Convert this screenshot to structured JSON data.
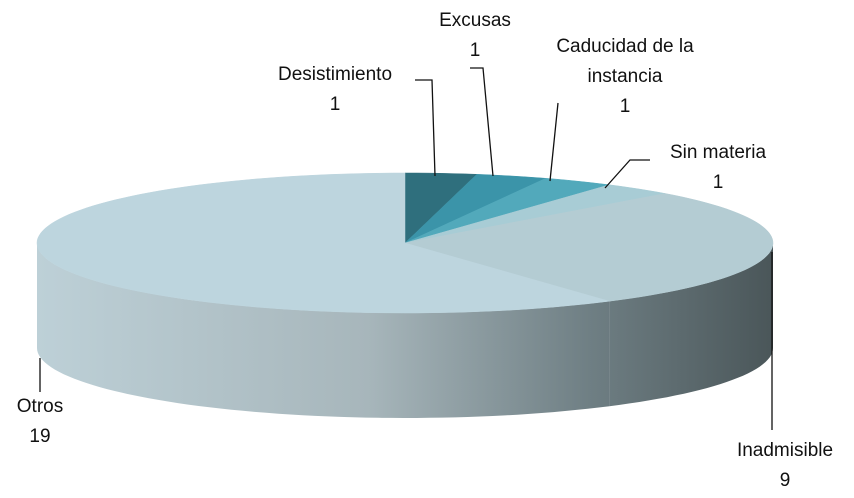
{
  "chart_data": {
    "type": "pie",
    "categories": [
      "Desistimiento",
      "Excusas",
      "Caducidad de la instancia",
      "Sin materia",
      "Inadmisible",
      "Otros"
    ],
    "values": [
      1,
      1,
      1,
      1,
      9,
      19
    ],
    "colors": [
      "#2f6f7d",
      "#3b94a9",
      "#52a9bb",
      "#a8ccd5",
      "#b4ccd3",
      "#bdd5de"
    ]
  }
}
